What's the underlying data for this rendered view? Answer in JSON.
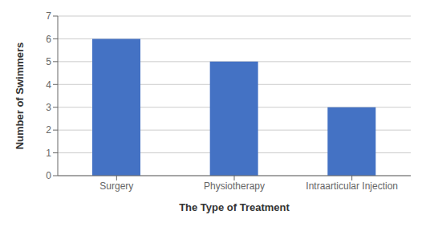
{
  "chart_data": {
    "type": "bar",
    "categories": [
      "Surgery",
      "Physiotherapy",
      "Intraarticular Injection"
    ],
    "values": [
      6,
      5,
      3
    ],
    "color": "#4472C4",
    "xlabel": "The Type of Treatment",
    "ylabel": "Number of Swimmers",
    "ylim": [
      0,
      7
    ],
    "yticks": [
      0,
      1,
      2,
      3,
      4,
      5,
      6,
      7
    ],
    "grid": true
  }
}
